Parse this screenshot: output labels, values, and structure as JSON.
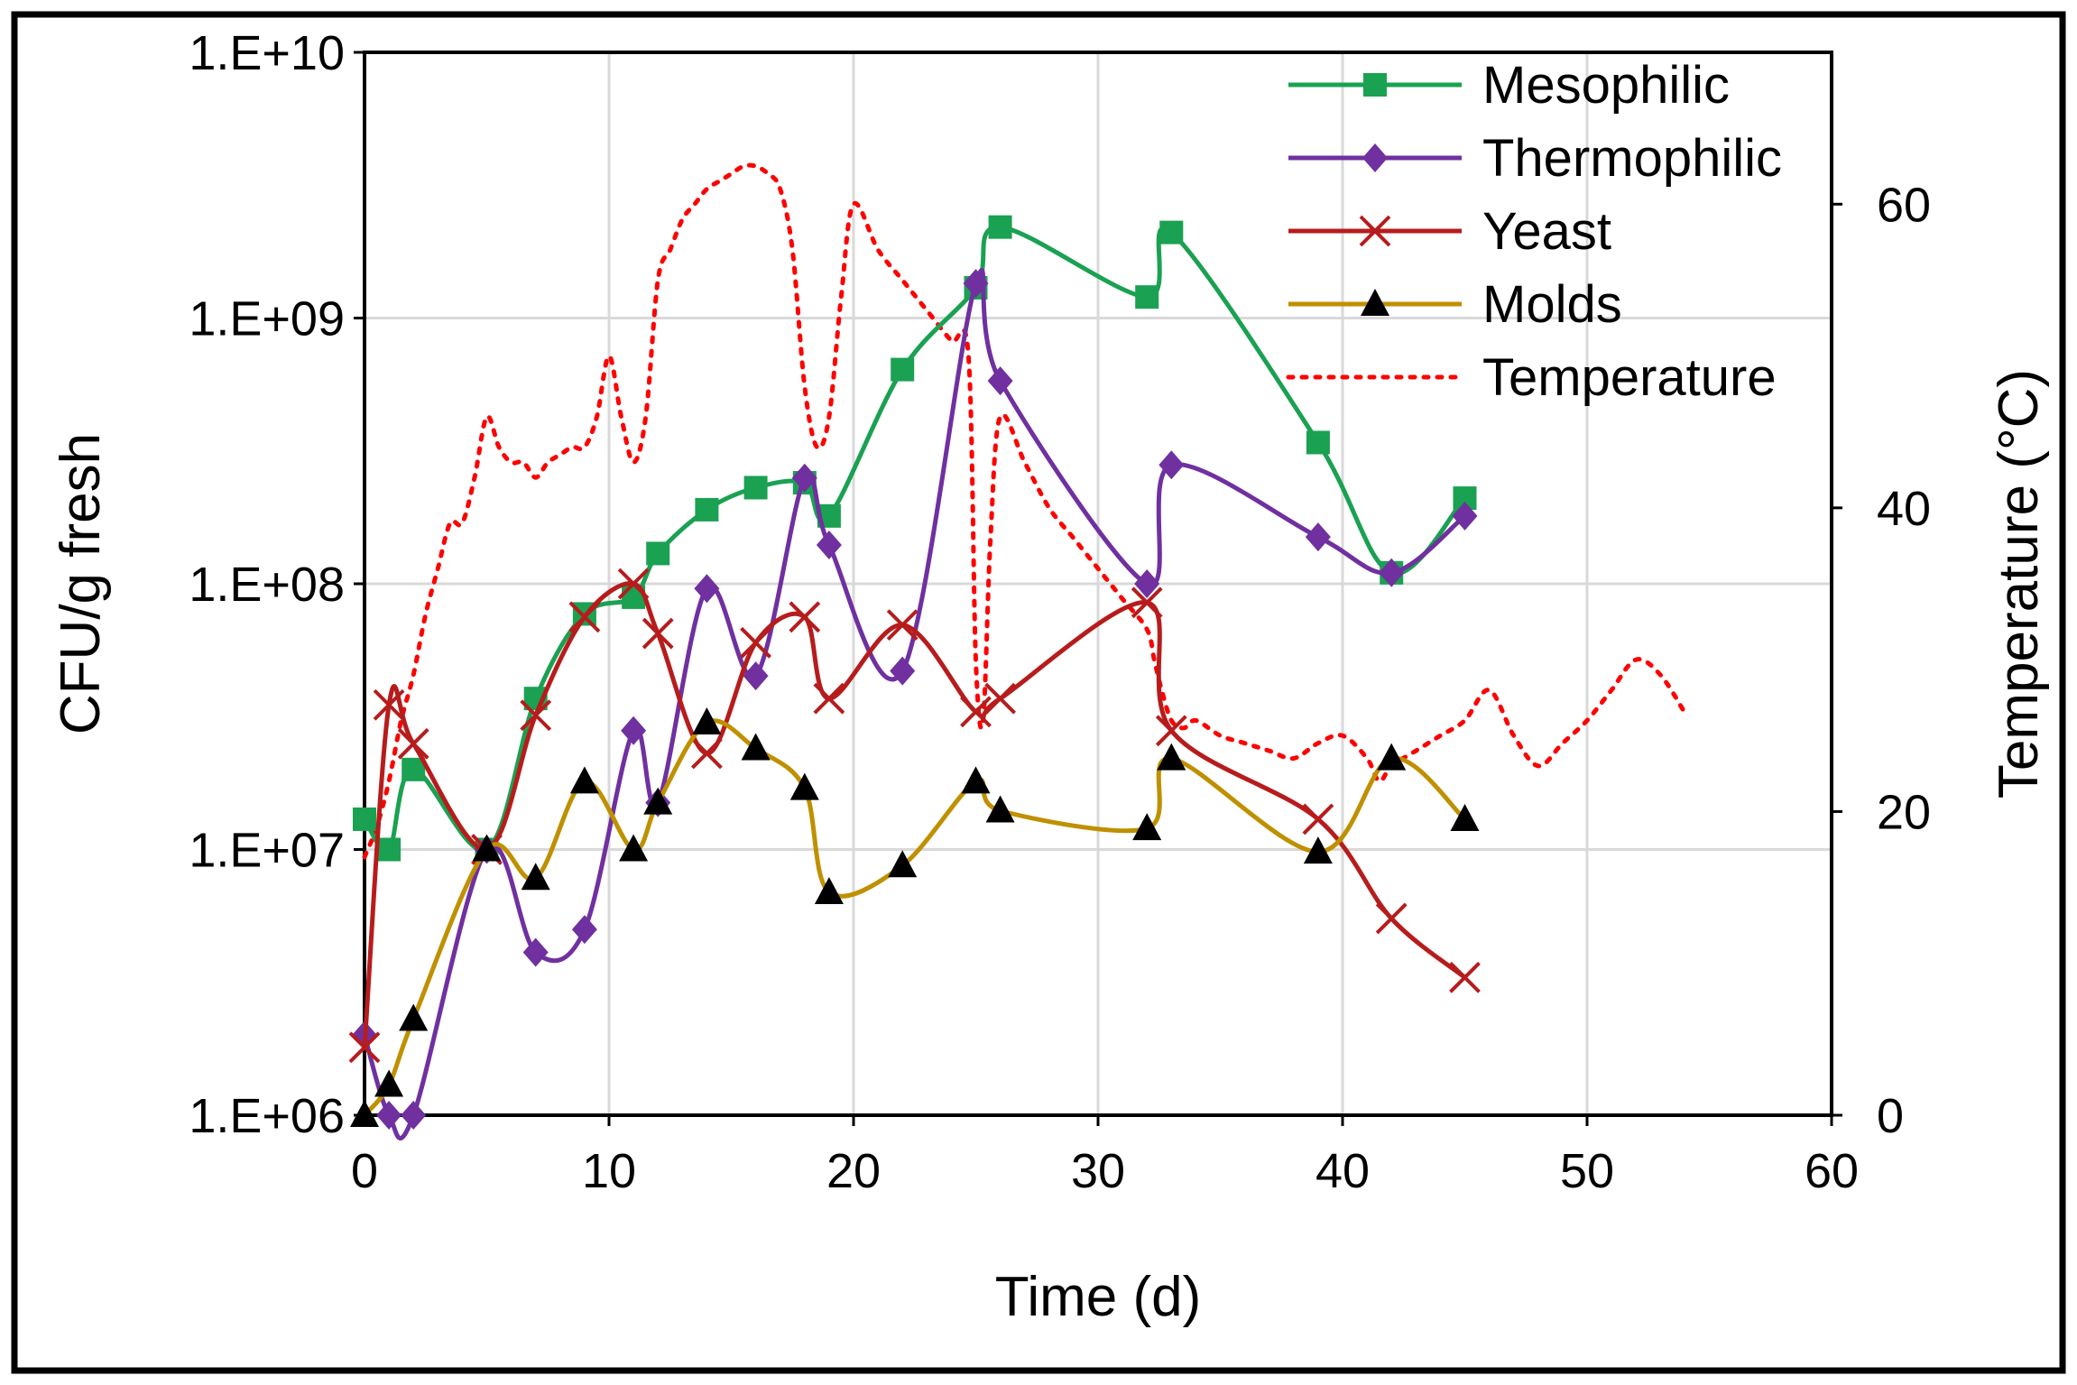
{
  "chart_data": {
    "type": "line",
    "title": "",
    "xlabel": "Time (d)",
    "ylabel": "CFU/g fresh",
    "y2label": "Temperature (°C)",
    "xlim": [
      0,
      60
    ],
    "ylim_log10": [
      6,
      10
    ],
    "y2lim": [
      0,
      70
    ],
    "x_ticks": [
      0,
      10,
      20,
      30,
      40,
      50,
      60
    ],
    "x_tick_labels": [
      "0",
      "10",
      "20",
      "30",
      "40",
      "50",
      "60"
    ],
    "y_ticks_log10": [
      6,
      7,
      8,
      9,
      10
    ],
    "y_tick_labels": [
      "1.E+06",
      "1.E+07",
      "1.E+08",
      "1.E+09",
      "1.E+10"
    ],
    "y2_ticks": [
      0,
      20,
      40,
      60
    ],
    "y2_tick_labels": [
      "0",
      "20",
      "40",
      "60"
    ],
    "grid": true,
    "legend_position": "top-right",
    "series": [
      {
        "name": "Mesophilic",
        "axis": "left",
        "color": "#1aa152",
        "marker": "square",
        "line": "solid",
        "x": [
          0,
          1,
          2,
          5,
          7,
          9,
          11,
          12,
          14,
          16,
          18,
          19,
          22,
          25,
          26,
          32,
          33,
          39,
          42,
          45
        ],
        "values": [
          13000000,
          10000000,
          20000000,
          10000000,
          37000000,
          77000000,
          89000000,
          130000000,
          190000000,
          230000000,
          240000000,
          180000000,
          640000000,
          1300000000,
          2200000000,
          1200000000,
          2100000000,
          340000000,
          110000000,
          210000000
        ]
      },
      {
        "name": "Thermophilic",
        "axis": "left",
        "color": "#7030a0",
        "marker": "diamond",
        "line": "solid",
        "x": [
          0,
          1,
          2,
          5,
          7,
          9,
          11,
          12,
          14,
          16,
          18,
          19,
          22,
          25,
          26,
          32,
          33,
          39,
          42,
          45
        ],
        "values": [
          2000000,
          1000000,
          1000000,
          10000000,
          4100000,
          5000000,
          28000000,
          15000000,
          96000000,
          45000000,
          250000000,
          140000000,
          47000000,
          1350000000,
          580000000,
          100000000,
          280000000,
          150000000,
          110000000,
          180000000
        ]
      },
      {
        "name": "Yeast",
        "axis": "left",
        "color": "#b71c1c",
        "marker": "x",
        "line": "solid",
        "x": [
          0,
          1,
          2,
          5,
          7,
          9,
          11,
          12,
          14,
          16,
          18,
          19,
          22,
          25,
          26,
          32,
          33,
          39,
          42,
          45
        ],
        "values": [
          1800000,
          35000000,
          25000000,
          10000000,
          32000000,
          75000000,
          100000000,
          65000000,
          23000000,
          60000000,
          75000000,
          37000000,
          70000000,
          33000000,
          37000000,
          85000000,
          28000000,
          13000000,
          5500000,
          3300000
        ]
      },
      {
        "name": "Molds",
        "axis": "left",
        "color": "#bf9000",
        "marker": "triangle",
        "line": "solid",
        "x": [
          0,
          1,
          2,
          5,
          7,
          9,
          11,
          12,
          14,
          16,
          18,
          19,
          22,
          25,
          26,
          32,
          33,
          39,
          42,
          45
        ],
        "values": [
          1000000,
          1300000,
          2300000,
          10000000,
          7800000,
          18000000,
          10000000,
          15000000,
          30000000,
          24000000,
          17000000,
          6900000,
          8700000,
          18000000,
          14000000,
          12000000,
          22000000,
          9800000,
          22000000,
          13000000
        ]
      },
      {
        "name": "Temperature",
        "axis": "right",
        "color": "#ff0000",
        "marker": "none",
        "line": "dotted",
        "x": [
          0,
          0.5,
          1,
          1.5,
          2,
          2.5,
          3,
          3.5,
          4,
          4.5,
          5,
          5.5,
          6,
          6.5,
          7,
          7.5,
          8,
          8.5,
          9,
          9.5,
          10,
          10.5,
          11,
          11.5,
          12,
          12.5,
          13,
          13.5,
          14,
          14.5,
          15,
          15.5,
          16,
          16.5,
          17,
          17.5,
          18,
          18.5,
          19,
          19.5,
          20,
          21,
          22,
          23,
          24,
          24.7,
          25,
          25.3,
          25.6,
          26,
          27,
          28,
          29,
          30,
          31,
          32,
          32.3,
          32.6,
          33,
          33.5,
          34,
          35,
          36,
          37,
          38,
          39,
          40,
          41,
          41.5,
          42,
          43,
          44,
          45,
          46,
          47,
          48,
          49,
          50,
          51,
          52,
          53,
          54
        ],
        "values": [
          17,
          19,
          22,
          26,
          29,
          33,
          36,
          39,
          39,
          42,
          46,
          44,
          43,
          43,
          42,
          43,
          43.5,
          44,
          44,
          46,
          50,
          46,
          43,
          46,
          55,
          57,
          59,
          60,
          61,
          61.5,
          62,
          62.5,
          62.5,
          62,
          61,
          57,
          48,
          44,
          46,
          54,
          60,
          57,
          55,
          53,
          51,
          50,
          30,
          26,
          38,
          46,
          43,
          40,
          38,
          36,
          34,
          32,
          30,
          28,
          26,
          25.5,
          26,
          25,
          24.5,
          24,
          23.5,
          24.5,
          25,
          23.5,
          22,
          23,
          24,
          25,
          26,
          28,
          25,
          23,
          24.5,
          26,
          28,
          30,
          29,
          26.5
        ]
      }
    ]
  }
}
